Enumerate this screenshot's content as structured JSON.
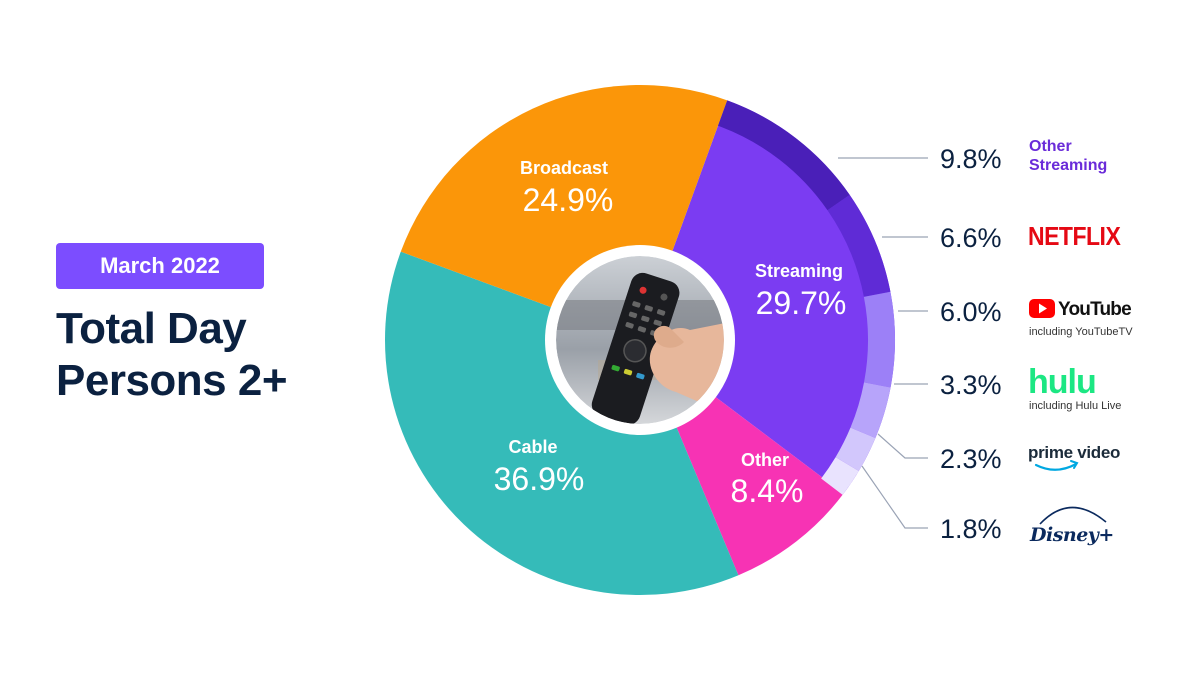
{
  "badge": "March 2022",
  "title_lines": [
    "Total Day",
    "Persons 2+"
  ],
  "chart_data": {
    "type": "pie",
    "variant": "donut",
    "categories": [
      "Streaming",
      "Other",
      "Cable",
      "Broadcast"
    ],
    "values": [
      29.7,
      8.4,
      36.9,
      24.9
    ],
    "labels": [
      "29.7%",
      "8.4%",
      "36.9%",
      "24.9%"
    ],
    "colors": [
      "#7b3cf2",
      "#f733b4",
      "#35bbb9",
      "#fb9609"
    ],
    "center_image": "tv-remote-photo",
    "streaming_breakdown": {
      "categories": [
        "Other Streaming",
        "Netflix",
        "YouTube",
        "Hulu",
        "Prime Video",
        "Disney+"
      ],
      "values": [
        9.8,
        6.6,
        6.0,
        3.3,
        2.3,
        1.8
      ],
      "labels": [
        "9.8%",
        "6.6%",
        "6.0%",
        "3.3%",
        "2.3%",
        "1.8%"
      ],
      "colors": [
        "#4a1fb8",
        "#5f2bd6",
        "#9c80f7",
        "#b7a4fa",
        "#d2c7fc",
        "#e9e3fe"
      ]
    }
  },
  "brands": {
    "other_streaming": [
      "Other",
      "Streaming"
    ],
    "netflix": "NETFLIX",
    "youtube": "YouTube",
    "youtube_sub": "including YouTubeTV",
    "hulu": "hulu",
    "hulu_sub": "including Hulu Live",
    "prime": "prime video",
    "disney": "Disney+"
  }
}
